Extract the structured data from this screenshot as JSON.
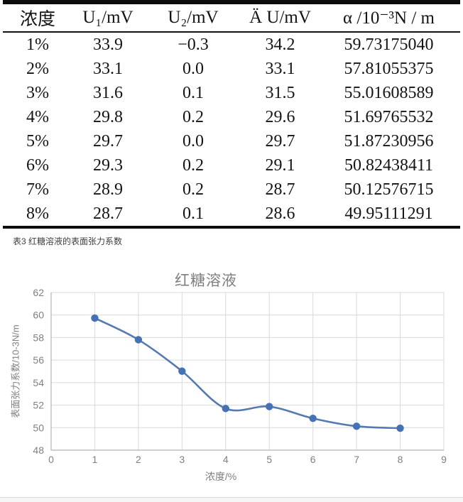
{
  "table": {
    "headers": [
      "浓度",
      "U₁/mV",
      "U₂/mV",
      "Ä U/mV",
      "α /10⁻³N / m"
    ],
    "rows": [
      [
        "1%",
        "33.9",
        "−0.3",
        "34.2",
        "59.73175040"
      ],
      [
        "2%",
        "33.1",
        "0.0",
        "33.1",
        "57.81055375"
      ],
      [
        "3%",
        "31.6",
        "0.1",
        "31.5",
        "55.01608589"
      ],
      [
        "4%",
        "29.8",
        "0.2",
        "29.6",
        "51.69765532"
      ],
      [
        "5%",
        "29.7",
        "0.0",
        "29.7",
        "51.87230956"
      ],
      [
        "6%",
        "29.3",
        "0.2",
        "29.1",
        "50.82438411"
      ],
      [
        "7%",
        "28.9",
        "0.2",
        "28.7",
        "50.12576715"
      ],
      [
        "8%",
        "28.7",
        "0.1",
        "28.6",
        "49.95111291"
      ]
    ]
  },
  "caption": "表3 红糖溶液的表面张力系数",
  "chart_data": {
    "type": "line",
    "title": "红糖溶液",
    "xlabel": "浓度/%",
    "ylabel": "表面张力系数/10-3N/m",
    "x": [
      1,
      2,
      3,
      4,
      5,
      6,
      7,
      8
    ],
    "y": [
      59.7317504,
      57.81055375,
      55.01608589,
      51.69765532,
      51.87230956,
      50.82438411,
      50.12576715,
      49.95111291
    ],
    "xlim": [
      0,
      9
    ],
    "ylim": [
      48,
      62
    ],
    "x_ticks": [
      0,
      1,
      2,
      3,
      4,
      5,
      6,
      7,
      8,
      9
    ],
    "y_ticks": [
      48,
      50,
      52,
      54,
      56,
      58,
      60,
      62
    ],
    "grid": true,
    "smooth": true,
    "legend": "none",
    "line_color": "#5579b3",
    "marker_color": "#4472b4",
    "grid_color": "#d9d9d9",
    "axis_color": "#bfbfbf",
    "tick_label_color": "#808080"
  }
}
